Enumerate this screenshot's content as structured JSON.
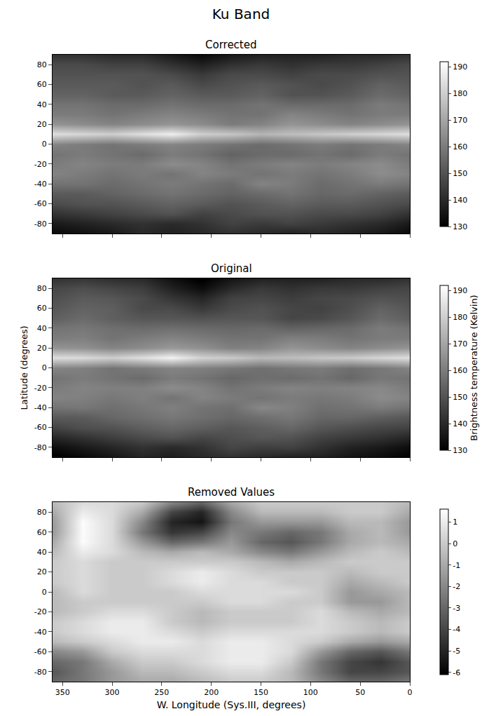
{
  "title": "Ku Band",
  "chart_data": [
    {
      "type": "heatmap",
      "title": "Corrected",
      "x": [
        0,
        30,
        60,
        90,
        120,
        150,
        180,
        210,
        240,
        270,
        300,
        330,
        360
      ],
      "y": [
        -90,
        -80,
        -70,
        -60,
        -50,
        -40,
        -30,
        -20,
        -10,
        0,
        10,
        20,
        30,
        40,
        50,
        60,
        70,
        80,
        90
      ],
      "z": [
        [
          132,
          136,
          138,
          140,
          138,
          140,
          142,
          140,
          138,
          140,
          136,
          134,
          132
        ],
        [
          136,
          140,
          142,
          144,
          146,
          144,
          146,
          142,
          140,
          142,
          140,
          138,
          136
        ],
        [
          142,
          146,
          148,
          148,
          150,
          150,
          148,
          146,
          150,
          148,
          146,
          144,
          142
        ],
        [
          148,
          150,
          152,
          152,
          154,
          152,
          150,
          152,
          154,
          152,
          150,
          150,
          148
        ],
        [
          152,
          154,
          156,
          155,
          158,
          156,
          154,
          156,
          158,
          156,
          154,
          152,
          152
        ],
        [
          158,
          160,
          158,
          156,
          160,
          162,
          156,
          158,
          160,
          158,
          156,
          158,
          158
        ],
        [
          162,
          164,
          160,
          158,
          160,
          158,
          160,
          162,
          158,
          160,
          158,
          160,
          162
        ],
        [
          160,
          164,
          162,
          160,
          162,
          160,
          158,
          162,
          164,
          160,
          160,
          162,
          160
        ],
        [
          158,
          160,
          156,
          158,
          156,
          156,
          154,
          158,
          160,
          156,
          158,
          160,
          158
        ],
        [
          162,
          160,
          158,
          160,
          158,
          156,
          158,
          160,
          162,
          160,
          158,
          160,
          162
        ],
        [
          184,
          182,
          180,
          178,
          176,
          174,
          178,
          180,
          188,
          184,
          180,
          182,
          184
        ],
        [
          166,
          164,
          162,
          164,
          166,
          162,
          160,
          164,
          166,
          164,
          162,
          164,
          166
        ],
        [
          160,
          160,
          158,
          160,
          162,
          158,
          158,
          160,
          162,
          160,
          158,
          160,
          160
        ],
        [
          158,
          160,
          156,
          156,
          156,
          158,
          156,
          156,
          158,
          156,
          156,
          158,
          158
        ],
        [
          154,
          156,
          152,
          150,
          150,
          154,
          152,
          152,
          154,
          152,
          152,
          154,
          154
        ],
        [
          152,
          154,
          150,
          148,
          150,
          152,
          150,
          148,
          152,
          150,
          152,
          152,
          152
        ],
        [
          150,
          150,
          148,
          148,
          146,
          148,
          148,
          144,
          148,
          150,
          150,
          150,
          150
        ],
        [
          148,
          146,
          144,
          144,
          142,
          144,
          142,
          138,
          142,
          146,
          146,
          148,
          148
        ],
        [
          142,
          140,
          140,
          138,
          138,
          138,
          136,
          132,
          136,
          140,
          140,
          142,
          142
        ]
      ],
      "xlim": [
        360,
        0
      ],
      "xticks": [
        350,
        300,
        250,
        200,
        150,
        100,
        50,
        0
      ],
      "ylim": [
        -90,
        90
      ],
      "yticks": [
        -80,
        -60,
        -40,
        -20,
        0,
        20,
        40,
        60,
        80
      ],
      "colorbar": {
        "range": [
          130,
          192
        ],
        "ticks": [
          130,
          140,
          150,
          160,
          170,
          180,
          190
        ]
      },
      "tick_labels": "y"
    },
    {
      "type": "heatmap",
      "title": "Original",
      "ylabel": "Latitude (degrees)",
      "x": [
        0,
        30,
        60,
        90,
        120,
        150,
        180,
        210,
        240,
        270,
        300,
        330,
        360
      ],
      "y": [
        -90,
        -80,
        -70,
        -60,
        -50,
        -40,
        -30,
        -20,
        -10,
        0,
        10,
        20,
        30,
        40,
        50,
        60,
        70,
        80,
        90
      ],
      "z": [
        [
          130,
          133,
          135,
          138,
          138,
          140,
          142,
          140,
          137,
          139,
          135,
          132,
          129
        ],
        [
          133,
          136,
          138,
          142,
          146,
          145,
          147,
          142,
          140,
          142,
          139,
          136,
          133
        ],
        [
          139,
          142,
          144,
          146,
          150,
          151,
          149,
          147,
          150,
          148,
          145,
          142,
          139
        ],
        [
          146,
          147,
          149,
          151,
          155,
          153,
          151,
          153,
          155,
          153,
          150,
          149,
          146
        ],
        [
          151,
          153,
          155,
          155,
          159,
          157,
          155,
          157,
          159,
          157,
          155,
          152,
          152
        ],
        [
          158,
          160,
          158,
          157,
          161,
          163,
          157,
          158,
          161,
          159,
          157,
          159,
          158
        ],
        [
          162,
          164,
          160,
          159,
          160,
          158,
          160,
          162,
          158,
          161,
          159,
          161,
          162
        ],
        [
          160,
          163,
          162,
          161,
          162,
          160,
          158,
          162,
          164,
          161,
          161,
          162,
          160
        ],
        [
          158,
          159,
          155,
          158,
          156,
          157,
          155,
          158,
          160,
          156,
          158,
          160,
          158
        ],
        [
          162,
          159,
          157,
          160,
          159,
          157,
          159,
          161,
          162,
          160,
          158,
          161,
          162
        ],
        [
          184,
          182,
          179,
          178,
          176,
          175,
          179,
          181,
          189,
          184,
          180,
          183,
          184
        ],
        [
          166,
          164,
          162,
          164,
          166,
          162,
          161,
          165,
          167,
          164,
          162,
          165,
          166
        ],
        [
          160,
          160,
          158,
          160,
          161,
          158,
          158,
          160,
          162,
          160,
          158,
          161,
          160
        ],
        [
          158,
          160,
          156,
          155,
          154,
          156,
          155,
          156,
          157,
          156,
          157,
          159,
          158
        ],
        [
          153,
          156,
          151,
          148,
          147,
          151,
          151,
          150,
          151,
          151,
          153,
          156,
          153
        ],
        [
          151,
          154,
          149,
          146,
          147,
          150,
          148,
          144,
          148,
          148,
          153,
          154,
          151
        ],
        [
          149,
          150,
          148,
          147,
          145,
          147,
          146,
          139,
          143,
          148,
          151,
          152,
          149
        ],
        [
          147,
          146,
          144,
          144,
          142,
          144,
          140,
          133,
          138,
          145,
          147,
          149,
          147
        ],
        [
          142,
          140,
          140,
          138,
          138,
          138,
          135,
          129,
          134,
          140,
          141,
          143,
          142
        ]
      ],
      "xlim": [
        360,
        0
      ],
      "xticks": [
        350,
        300,
        250,
        200,
        150,
        100,
        50,
        0
      ],
      "ylim": [
        -90,
        90
      ],
      "yticks": [
        -80,
        -60,
        -40,
        -20,
        0,
        20,
        40,
        60,
        80
      ],
      "colorbar": {
        "range": [
          130,
          192
        ],
        "ticks": [
          130,
          140,
          150,
          160,
          170,
          180,
          190
        ],
        "label": "Brightness temperature (Kelvin)"
      },
      "tick_labels": "y"
    },
    {
      "type": "heatmap",
      "title": "Removed Values",
      "xlabel": "W. Longitude (Sys.III, degrees)",
      "x": [
        0,
        30,
        60,
        90,
        120,
        150,
        180,
        210,
        240,
        270,
        300,
        330,
        360
      ],
      "y": [
        -90,
        -80,
        -70,
        -60,
        -50,
        -40,
        -30,
        -20,
        -10,
        0,
        10,
        20,
        30,
        40,
        50,
        60,
        70,
        80,
        90
      ],
      "z": [
        [
          -2.5,
          -3,
          -3,
          -2,
          -0.5,
          0,
          0,
          -0.5,
          -1,
          -1,
          -1.5,
          -2.5,
          -3
        ],
        [
          -3.5,
          -4,
          -4,
          -2.5,
          -0.5,
          0.5,
          0.5,
          0,
          -0.5,
          -0.5,
          -1.5,
          -2.5,
          -3.5
        ],
        [
          -3.5,
          -4.5,
          -4,
          -2.5,
          0,
          1,
          1,
          0.5,
          0,
          0,
          -1,
          -2.5,
          -3
        ],
        [
          -2.5,
          -3.5,
          -3,
          -1.5,
          0.5,
          1,
          1,
          0.5,
          0.5,
          0.5,
          0,
          -1.5,
          -2
        ],
        [
          -1,
          -1.5,
          -1,
          0,
          0.5,
          1,
          1,
          0.5,
          1,
          1,
          0.5,
          0,
          -0.5
        ],
        [
          0,
          -0.5,
          0,
          0.5,
          0.5,
          0.5,
          0.5,
          0,
          0.5,
          1,
          1,
          0.5,
          0
        ],
        [
          0,
          -0.5,
          0,
          0.5,
          0,
          0,
          0,
          -0.5,
          0,
          1,
          1,
          0.5,
          0
        ],
        [
          -0.5,
          -1,
          -0.5,
          0.5,
          0,
          0,
          0,
          -0.5,
          0,
          0.5,
          0.5,
          0,
          -0.5
        ],
        [
          -0.5,
          -1.5,
          -1.5,
          0,
          0,
          0.5,
          0.5,
          0,
          0,
          0,
          0,
          0,
          -0.5
        ],
        [
          -0.5,
          -1,
          -1.5,
          0,
          0.5,
          0.5,
          0.5,
          0.5,
          0,
          0,
          0,
          0.5,
          -0.5
        ],
        [
          0,
          -0.5,
          -1,
          0,
          0,
          0.5,
          0.5,
          1,
          0.5,
          0,
          0,
          0.5,
          0
        ],
        [
          0,
          0,
          -0.5,
          0,
          0,
          0,
          0.5,
          1,
          0.5,
          0,
          0,
          0.5,
          0
        ],
        [
          0,
          0,
          0,
          -0.5,
          -1,
          -0.5,
          0,
          0,
          0,
          0,
          0,
          0.5,
          0
        ],
        [
          -0.5,
          0,
          -0.5,
          -1.5,
          -2.5,
          -2,
          -1,
          -0.5,
          -1,
          -0.5,
          0.5,
          1,
          -0.5
        ],
        [
          -1,
          -0.5,
          -1,
          -2.5,
          -3.5,
          -3,
          -1.5,
          -2.5,
          -3,
          -1.5,
          0.5,
          1.5,
          -1
        ],
        [
          -1.5,
          -0.5,
          -1,
          -2.5,
          -3,
          -2.5,
          -2,
          -4,
          -4.5,
          -2.5,
          0.5,
          1.5,
          -1.5
        ],
        [
          -1.5,
          -0.5,
          -0.5,
          -1.5,
          -1.5,
          -1.5,
          -2.5,
          -5.5,
          -5,
          -2,
          0.5,
          1.5,
          -1.5
        ],
        [
          -1,
          0,
          0,
          -0.5,
          -0.5,
          -0.5,
          -2,
          -5,
          -4,
          -1,
          0.5,
          1,
          -1
        ],
        [
          -0.5,
          0,
          0,
          0,
          0,
          0,
          -1,
          -3,
          -2,
          0,
          0.5,
          0.5,
          -0.5
        ]
      ],
      "xlim": [
        360,
        0
      ],
      "xticks": [
        350,
        300,
        250,
        200,
        150,
        100,
        50,
        0
      ],
      "ylim": [
        -90,
        90
      ],
      "yticks": [
        -80,
        -60,
        -40,
        -20,
        0,
        20,
        40,
        60,
        80
      ],
      "colorbar": {
        "range": [
          -6.1,
          1.6
        ],
        "ticks": [
          -6,
          -5,
          -4,
          -3,
          -2,
          -1,
          0,
          1
        ]
      }
    }
  ]
}
